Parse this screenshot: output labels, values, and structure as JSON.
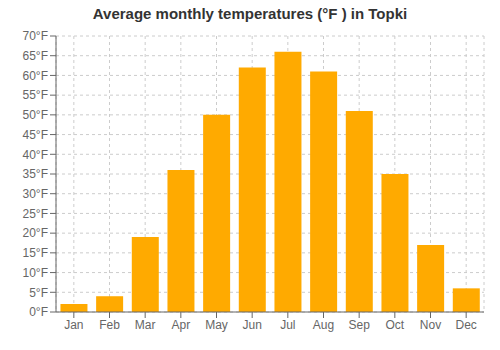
{
  "chart_data": {
    "type": "bar",
    "title": "Average monthly temperatures (°F ) in Topki",
    "categories": [
      "Jan",
      "Feb",
      "Mar",
      "Apr",
      "May",
      "Jun",
      "Jul",
      "Aug",
      "Sep",
      "Oct",
      "Nov",
      "Dec"
    ],
    "values": [
      2,
      4,
      19,
      36,
      50,
      62,
      66,
      61,
      51,
      35,
      17,
      6
    ],
    "color": "#FFAA00",
    "ylim": [
      0,
      70
    ],
    "yticks": [
      {
        "value": 0,
        "label": "0°F"
      },
      {
        "value": 5,
        "label": "5°F"
      },
      {
        "value": 10,
        "label": "10°F"
      },
      {
        "value": 15,
        "label": "15°F"
      },
      {
        "value": 20,
        "label": "20°F"
      },
      {
        "value": 25,
        "label": "25°F"
      },
      {
        "value": 30,
        "label": "30°F"
      },
      {
        "value": 35,
        "label": "35°F"
      },
      {
        "value": 40,
        "label": "40°F"
      },
      {
        "value": 45,
        "label": "45°F"
      },
      {
        "value": 50,
        "label": "50°F"
      },
      {
        "value": 55,
        "label": "55°F"
      },
      {
        "value": 60,
        "label": "60°F"
      },
      {
        "value": 65,
        "label": "65°F"
      },
      {
        "value": 70,
        "label": "70°F"
      }
    ],
    "grid": true
  }
}
